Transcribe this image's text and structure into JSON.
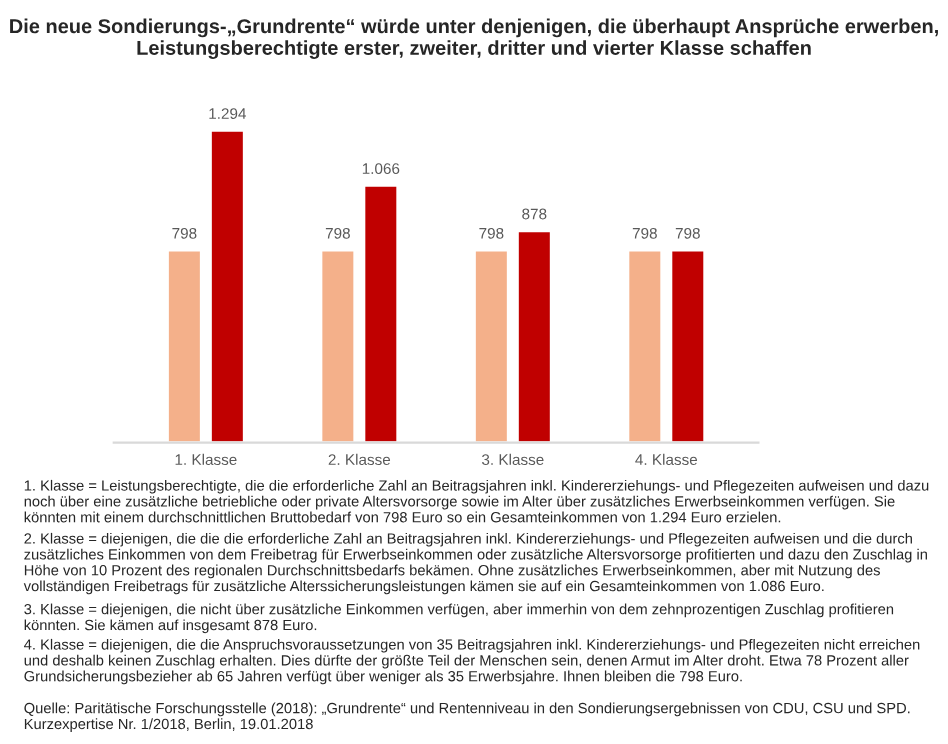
{
  "chart_data": {
    "type": "bar",
    "title": "Die neue Sondierungs-„Grundrente“ würde unter denjenigen, die überhaupt Ansprüche erwerben, Leistungsberechtigte erster, zweiter, dritter und vierter Klasse schaffen",
    "categories": [
      "1. Klasse",
      "2. Klasse",
      "3. Klasse",
      "4. Klasse"
    ],
    "series": [
      {
        "color": "#f4b08a",
        "values": [
          798,
          798,
          798,
          798
        ],
        "value_labels": [
          "798",
          "798",
          "798",
          "798"
        ]
      },
      {
        "color": "#c00000",
        "values": [
          1294,
          1066,
          878,
          798
        ],
        "value_labels": [
          "1.294",
          "1.066",
          "878",
          "798"
        ]
      }
    ],
    "legend": false,
    "grid": false,
    "annotations": [
      "1. Klasse = Leistungsberechtigte, die die erforderliche Zahl an Beitragsjahren inkl. Kindererziehungs- und Pflegezeiten aufweisen und dazu noch über eine zusätzliche betriebliche oder private Altersvorsorge sowie im Alter über zusätzliches Erwerbseinkommen verfügen. Sie könnten mit einem durchschnittlichen Bruttobedarf von 798 Euro so ein Gesamteinkommen von 1.294 Euro erzielen.",
      "2. Klasse = diejenigen, die die die erforderliche Zahl an Beitragsjahren inkl. Kindererziehungs- und Pflegezeiten aufweisen und die durch zusätzliches Einkommen von dem Freibetrag für Erwerbseinkommen oder zusätzliche Altersvorsorge profitierten und dazu den Zuschlag in Höhe von 10 Prozent des regionalen Durchschnittsbedarfs bekämen. Ohne zusätzliches Erwerbseinkommen, aber mit Nutzung des vollständigen Freibetrags für zusätzliche Alterssicherungsleistungen kämen sie auf ein Gesamteinkommen von 1.086 Euro.",
      "3. Klasse = diejenigen, die nicht über zusätzliche Einkommen verfügen, aber immerhin von dem zehnprozentigen Zuschlag profitieren könnten. Sie kämen auf insgesamt 878 Euro.",
      "4. Klasse = diejenigen, die die Anspruchsvoraussetzungen von 35 Beitragsjahren inkl. Kindererziehungs- und Pflegezeiten nicht erreichen und deshalb keinen Zuschlag erhalten. Dies dürfte der größte Teil der Menschen sein, denen Armut im Alter droht. Etwa 78 Prozent aller Grundsicherungsbezieher ab 65 Jahren verfügt über weniger als 35 Erwerbsjahre. Ihnen bleiben die 798 Euro.",
      "Quelle: Paritätische Forschungsstelle (2018): „Grundrente“ und Rentenniveau in den Sondierungsergebnissen von CDU, CSU und SPD. Kurzexpertise Nr. 1/2018, Berlin, 19.01.2018"
    ]
  }
}
